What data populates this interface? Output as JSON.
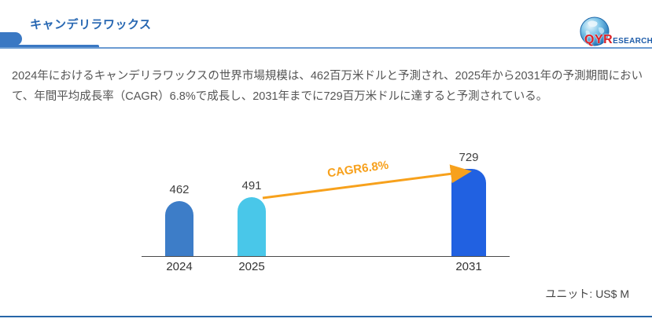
{
  "header": {
    "title": "キャンデリラワックス",
    "logo": {
      "part1": "QYR",
      "part2": "ESEARCH"
    }
  },
  "description": "2024年におけるキャンデリラワックスの世界市場規模は、462百万米ドルと予測され、2025年から2031年の予測期間におい\nて、年間平均成長率（CAGR）6.8%で成長し、2031年までに729百万米ドルに達すると予測されている。",
  "chart_data": {
    "type": "bar",
    "title": "",
    "xlabel": "",
    "ylabel": "",
    "categories": [
      "2024",
      "2025",
      "2031"
    ],
    "values": [
      462,
      491,
      729
    ],
    "ylim": [
      0,
      800
    ],
    "grid": false,
    "legend": false,
    "unit_label": "ユニット: US$ M",
    "annotation": "CAGR6.8%",
    "bar_colors": [
      "#3D7DC8",
      "#49C7E9",
      "#2161E1"
    ],
    "arrow_color": "#F7A11C",
    "accent_blue": "#3A78C3",
    "label_color": "#3F3F3F"
  }
}
